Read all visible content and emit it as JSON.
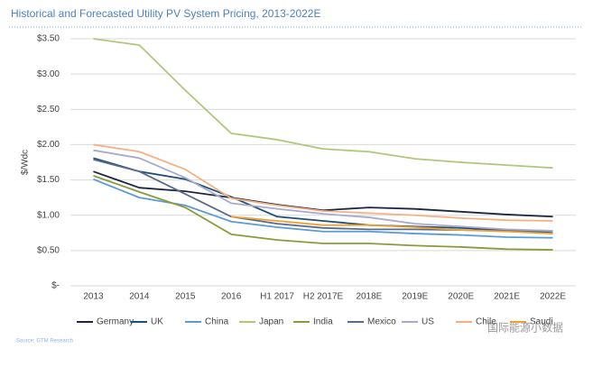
{
  "chart_data": {
    "type": "line",
    "title": "Historical and Forecasted Utility PV System Pricing, 2013-2022E",
    "y_label": "$/Wdc",
    "source": "Source: GTM Research",
    "annotations": [
      "国际能源小数据"
    ],
    "categories": [
      "2013",
      "2014",
      "2015",
      "2016",
      "H1 2017",
      "H2 2017E",
      "2018E",
      "2019E",
      "2020E",
      "2021E",
      "2022E"
    ],
    "ylim": [
      0,
      3.5
    ],
    "yticks": [
      {
        "value": 0,
        "label": "$-"
      },
      {
        "value": 0.5,
        "label": "$0.50"
      },
      {
        "value": 1,
        "label": "$1.00"
      },
      {
        "value": 1.5,
        "label": "$1.50"
      },
      {
        "value": 2,
        "label": "$2.00"
      },
      {
        "value": 2.5,
        "label": "$2.50"
      },
      {
        "value": 3,
        "label": "$3.00"
      },
      {
        "value": 3.5,
        "label": "$3.50"
      }
    ],
    "grid": true,
    "legend": "bottom",
    "series": [
      {
        "name": "Germany",
        "color": "#1c2641",
        "values": [
          1.62,
          1.39,
          1.34,
          1.25,
          1.15,
          1.07,
          1.11,
          1.09,
          1.05,
          1.01,
          0.98
        ]
      },
      {
        "name": "UK",
        "color": "#1f4e79",
        "values": [
          1.81,
          1.62,
          1.51,
          1.26,
          0.98,
          0.92,
          0.86,
          0.84,
          0.82,
          0.79,
          0.75
        ]
      },
      {
        "name": "China",
        "color": "#5b9bd5",
        "values": [
          1.51,
          1.25,
          1.14,
          0.91,
          0.83,
          0.77,
          0.77,
          0.74,
          0.72,
          0.69,
          0.68
        ]
      },
      {
        "name": "Japan",
        "color": "#b0c77a",
        "values": [
          3.5,
          3.41,
          2.77,
          2.16,
          2.07,
          1.94,
          1.9,
          1.8,
          1.75,
          1.71,
          1.67
        ]
      },
      {
        "name": "India",
        "color": "#8a9a3c",
        "values": [
          1.56,
          1.33,
          1.11,
          0.73,
          0.65,
          0.6,
          0.6,
          0.57,
          0.55,
          0.52,
          0.51
        ]
      },
      {
        "name": "Mexico",
        "color": "#5a6a8a",
        "values": [
          1.79,
          1.62,
          1.3,
          0.98,
          0.88,
          0.82,
          0.8,
          0.8,
          0.79,
          0.78,
          0.78
        ]
      },
      {
        "name": "US",
        "color": "#a9a9cc",
        "values": [
          1.92,
          1.81,
          1.53,
          1.17,
          1.09,
          1.02,
          0.97,
          0.88,
          0.84,
          0.8,
          0.78
        ]
      },
      {
        "name": "Chile",
        "color": "#f4b183",
        "values": [
          2.0,
          1.9,
          1.65,
          1.24,
          1.14,
          1.06,
          1.03,
          1.0,
          0.96,
          0.93,
          0.92
        ]
      },
      {
        "name": "Saudi",
        "color": "#f0a030",
        "values": [
          null,
          null,
          null,
          0.98,
          0.92,
          0.86,
          0.86,
          0.83,
          0.79,
          0.77,
          0.74
        ]
      }
    ]
  }
}
